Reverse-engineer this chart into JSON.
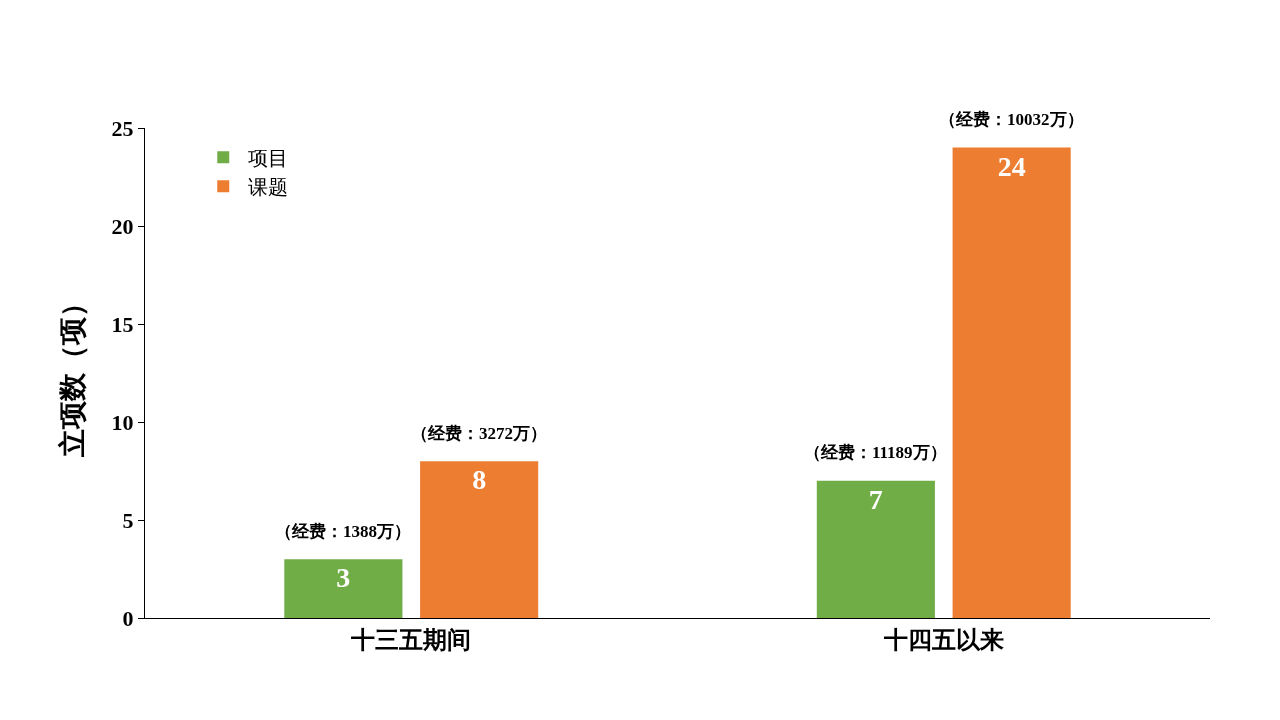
{
  "chart_data": {
    "type": "bar",
    "ylabel": "立项数（项）",
    "categories": [
      "十三五期间",
      "十四五以来"
    ],
    "series": [
      {
        "name": "项目",
        "color": "#70ad47",
        "values": [
          3,
          7
        ]
      },
      {
        "name": "课题",
        "color": "#ed7d31",
        "values": [
          8,
          24
        ]
      }
    ],
    "ylim": [
      0,
      25
    ],
    "yticks": [
      0,
      5,
      10,
      15,
      20,
      25
    ],
    "grid": false,
    "legend": "top left",
    "data_labels": true,
    "annotations": [
      "（经费：1388万）",
      "（经费：3272万）",
      "（经费：11189万）",
      "（经费：10032万）"
    ]
  }
}
